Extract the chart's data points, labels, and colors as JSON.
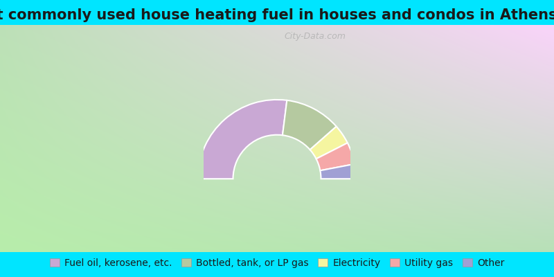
{
  "title": "Most commonly used house heating fuel in houses and condos in Athens, NY",
  "segments": [
    {
      "label": "Fuel oil, kerosene, etc.",
      "value": 54,
      "color": "#c9a8d4"
    },
    {
      "label": "Bottled, tank, or LP gas",
      "value": 23,
      "color": "#b5c9a0"
    },
    {
      "label": "Electricity",
      "value": 8,
      "color": "#f5f5a0"
    },
    {
      "label": "Utility gas",
      "value": 9,
      "color": "#f5a8a8"
    },
    {
      "label": "Other",
      "value": 6,
      "color": "#a0a0d4"
    }
  ],
  "background_top": "#00e5ff",
  "title_fontsize": 15,
  "legend_fontsize": 10
}
